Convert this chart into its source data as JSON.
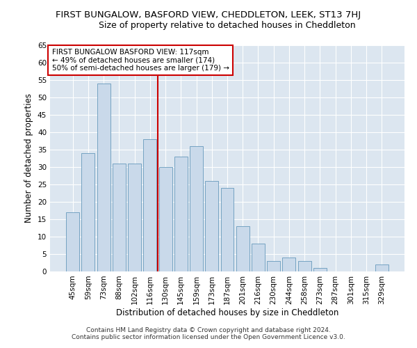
{
  "title": "FIRST BUNGALOW, BASFORD VIEW, CHEDDLETON, LEEK, ST13 7HJ",
  "subtitle": "Size of property relative to detached houses in Cheddleton",
  "xlabel": "Distribution of detached houses by size in Cheddleton",
  "ylabel": "Number of detached properties",
  "bar_labels": [
    "45sqm",
    "59sqm",
    "73sqm",
    "88sqm",
    "102sqm",
    "116sqm",
    "130sqm",
    "145sqm",
    "159sqm",
    "173sqm",
    "187sqm",
    "201sqm",
    "216sqm",
    "230sqm",
    "244sqm",
    "258sqm",
    "273sqm",
    "287sqm",
    "301sqm",
    "315sqm",
    "329sqm"
  ],
  "bar_values": [
    17,
    34,
    54,
    31,
    31,
    38,
    30,
    33,
    36,
    26,
    24,
    13,
    8,
    3,
    4,
    3,
    1,
    0,
    0,
    0,
    2
  ],
  "bar_color": "#c9d9ea",
  "bar_edgecolor": "#6699bb",
  "vline_x": 5.5,
  "vline_color": "#cc0000",
  "annotation_text": "FIRST BUNGALOW BASFORD VIEW: 117sqm\n← 49% of detached houses are smaller (174)\n50% of semi-detached houses are larger (179) →",
  "annotation_box_color": "#ffffff",
  "annotation_box_edgecolor": "#cc0000",
  "ylim": [
    0,
    65
  ],
  "yticks": [
    0,
    5,
    10,
    15,
    20,
    25,
    30,
    35,
    40,
    45,
    50,
    55,
    60,
    65
  ],
  "footer_line1": "Contains HM Land Registry data © Crown copyright and database right 2024.",
  "footer_line2": "Contains public sector information licensed under the Open Government Licence v3.0.",
  "bg_color": "#ffffff",
  "plot_bg_color": "#dce6f0",
  "grid_color": "#ffffff",
  "title_fontsize": 9.5,
  "subtitle_fontsize": 9,
  "label_fontsize": 8.5,
  "tick_fontsize": 7.5,
  "footer_fontsize": 6.5,
  "annot_fontsize": 7.5
}
